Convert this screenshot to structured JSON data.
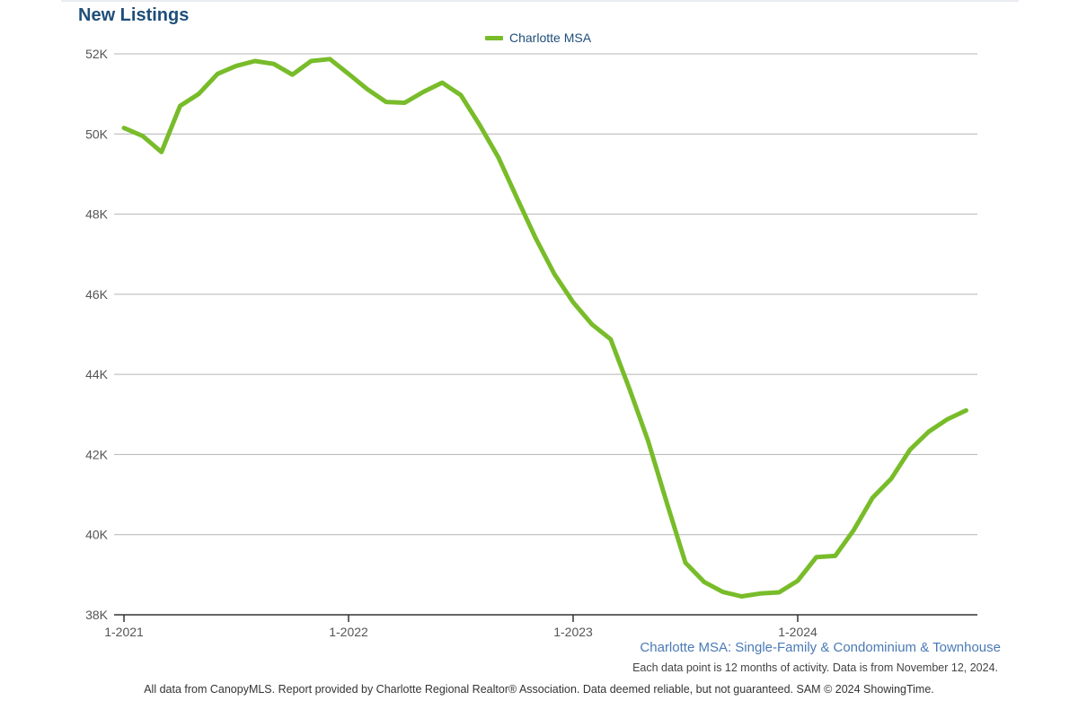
{
  "title": "New Listings",
  "subtitle": "Charlotte MSA: Single-Family & Condominium & Townhouse",
  "note": "Each data point is 12 months of activity. Data is from November 12, 2024.",
  "footer": "All data from CanopyMLS. Report provided by Charlotte Regional Realtor® Association. Data deemed reliable, but not guaranteed. SAM © 2024 ShowingTime.",
  "colors": {
    "series": "#78bc2a",
    "grid": "#b4b4b4",
    "axis": "#555555",
    "title": "#1f4e79"
  },
  "chart_data": {
    "type": "line",
    "title": "New Listings",
    "xlabel": "",
    "ylabel": "",
    "x_start": "1-2021",
    "x_end": "10-2024",
    "x_ticks": [
      "1-2021",
      "1-2022",
      "1-2023",
      "1-2024"
    ],
    "y_ticks": [
      "38K",
      "40K",
      "42K",
      "44K",
      "46K",
      "48K",
      "50K",
      "52K"
    ],
    "y_tick_values": [
      38000,
      40000,
      42000,
      44000,
      46000,
      48000,
      50000,
      52000
    ],
    "ylim": [
      38000,
      52000
    ],
    "grid": true,
    "legend_position": "top-center",
    "series": [
      {
        "name": "Charlotte MSA",
        "color": "#78bc2a",
        "x": [
          "1-2021",
          "2-2021",
          "3-2021",
          "4-2021",
          "5-2021",
          "6-2021",
          "7-2021",
          "8-2021",
          "9-2021",
          "10-2021",
          "11-2021",
          "12-2021",
          "1-2022",
          "2-2022",
          "3-2022",
          "4-2022",
          "5-2022",
          "6-2022",
          "7-2022",
          "8-2022",
          "9-2022",
          "10-2022",
          "11-2022",
          "12-2022",
          "1-2023",
          "2-2023",
          "3-2023",
          "4-2023",
          "5-2023",
          "6-2023",
          "7-2023",
          "8-2023",
          "9-2023",
          "10-2023",
          "11-2023",
          "12-2023",
          "1-2024",
          "2-2024",
          "3-2024",
          "4-2024",
          "5-2024",
          "6-2024",
          "7-2024",
          "8-2024",
          "9-2024",
          "10-2024"
        ],
        "values": [
          50150,
          49950,
          49550,
          50700,
          51000,
          51500,
          51700,
          51820,
          51750,
          51480,
          51820,
          51870,
          51500,
          51120,
          50800,
          50780,
          51050,
          51280,
          50970,
          50230,
          49420,
          48400,
          47400,
          46500,
          45800,
          45250,
          44880,
          43650,
          42350,
          40800,
          39300,
          38820,
          38570,
          38460,
          38530,
          38560,
          38850,
          39440,
          39470,
          40120,
          40920,
          41400,
          42120,
          42570,
          42880,
          43100
        ]
      }
    ]
  }
}
